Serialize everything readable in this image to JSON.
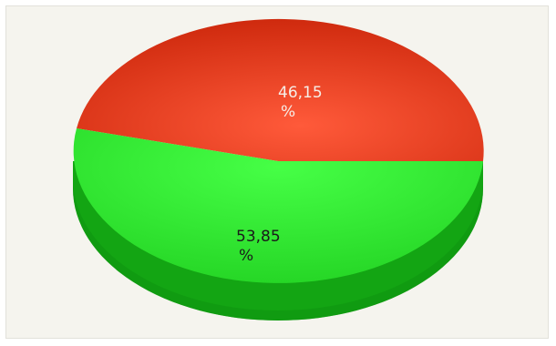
{
  "chart_data": {
    "type": "pie",
    "style": "3d-pie",
    "title": "",
    "slices": [
      {
        "label_value": "46,15",
        "label_unit": "%",
        "value": 46.15,
        "color": "#e8381c",
        "side_color": "#b01e08",
        "text_color": "#f6eee8"
      },
      {
        "label_value": "53,85",
        "label_unit": "%",
        "value": 53.85,
        "color": "#2ee62e",
        "side_color": "#14a614",
        "text_color": "#1a1a1a"
      }
    ],
    "legend": "none",
    "background_color": "#f5f4ee"
  }
}
